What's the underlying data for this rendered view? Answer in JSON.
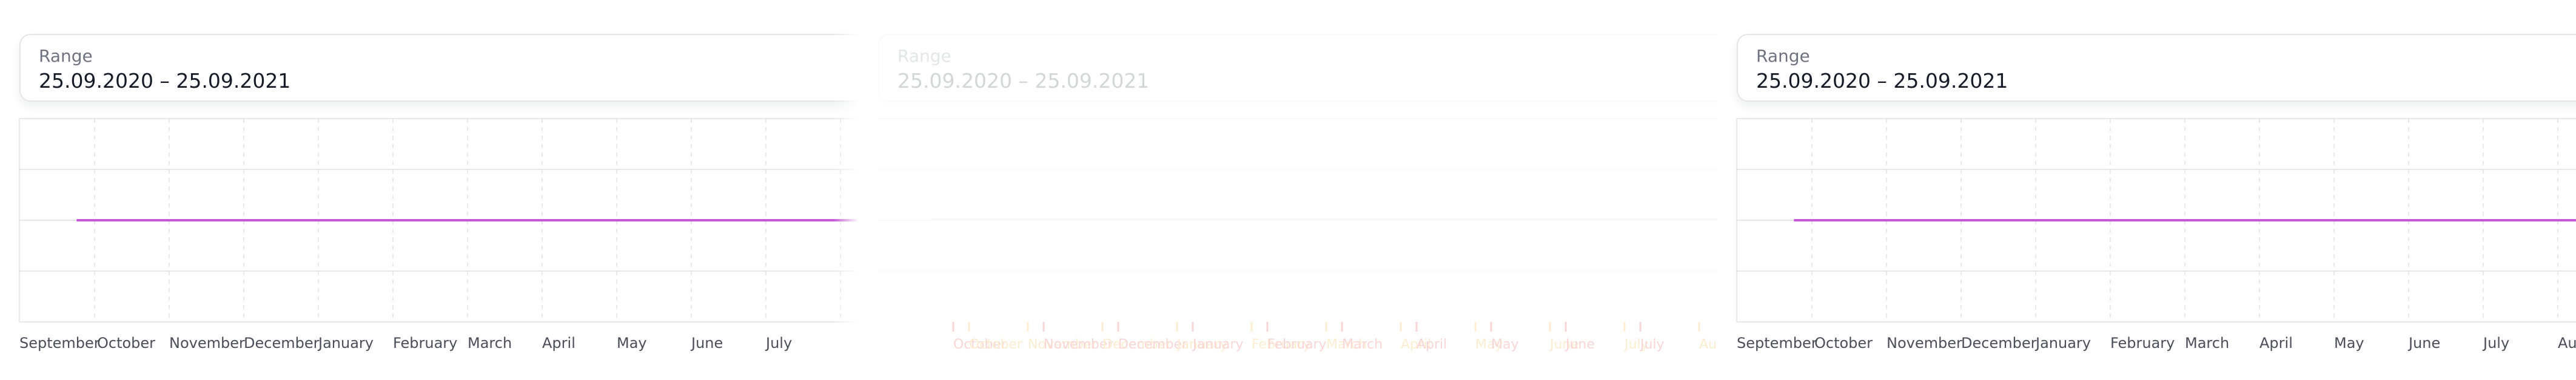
{
  "range_widget": {
    "label": "Range",
    "value": "25.09.2020 – 25.09.2021"
  },
  "chart_data": {
    "type": "line",
    "x_labels": [
      "September",
      "October",
      "November",
      "December",
      "January",
      "February",
      "March",
      "April",
      "May",
      "June",
      "July",
      "August"
    ],
    "visible_x_labels_left": [
      "September",
      "October",
      "November",
      "December",
      "January",
      "February",
      "March",
      "April",
      "May",
      "June",
      "July"
    ],
    "visible_x_labels_right": [
      "September",
      "October",
      "November",
      "December",
      "January",
      "February",
      "March",
      "April",
      "May",
      "June",
      "July",
      "Aug"
    ],
    "series": [
      {
        "values": [
          0.5,
          0.5,
          0.5,
          0.5,
          0.5,
          0.5,
          0.5,
          0.5,
          0.5,
          0.5,
          0.5,
          0.5
        ],
        "color": "#c45ad8"
      }
    ],
    "ylim": [
      0,
      1
    ],
    "grid": true,
    "grid_style": "dashed"
  },
  "transition_frame": {
    "opacity_state": "fading",
    "primary_label_color": "#e81f1f",
    "secondary_label_color": "#f2a000",
    "labels": [
      {
        "text": "October",
        "color": "red"
      },
      {
        "text": "October",
        "color": "orange"
      },
      {
        "text": "November",
        "color": "orange"
      },
      {
        "text": "November",
        "color": "red"
      },
      {
        "text": "December",
        "color": "orange"
      },
      {
        "text": "December",
        "color": "red"
      },
      {
        "text": "January",
        "color": "orange"
      },
      {
        "text": "January",
        "color": "red"
      },
      {
        "text": "February",
        "color": "orange"
      },
      {
        "text": "February",
        "color": "red"
      },
      {
        "text": "March",
        "color": "orange"
      },
      {
        "text": "March",
        "color": "red"
      },
      {
        "text": "April",
        "color": "orange"
      },
      {
        "text": "April",
        "color": "red"
      },
      {
        "text": "May",
        "color": "orange"
      },
      {
        "text": "May",
        "color": "red"
      },
      {
        "text": "June",
        "color": "orange"
      },
      {
        "text": "June",
        "color": "red"
      },
      {
        "text": "July",
        "color": "orange"
      },
      {
        "text": "July",
        "color": "red"
      },
      {
        "text": "Au",
        "color": "orange"
      }
    ]
  },
  "colors": {
    "grid": "#dedfe6",
    "line": "#c45ad8",
    "axis_text": "#4a4d5a",
    "card_border": "#e4e4ea"
  }
}
